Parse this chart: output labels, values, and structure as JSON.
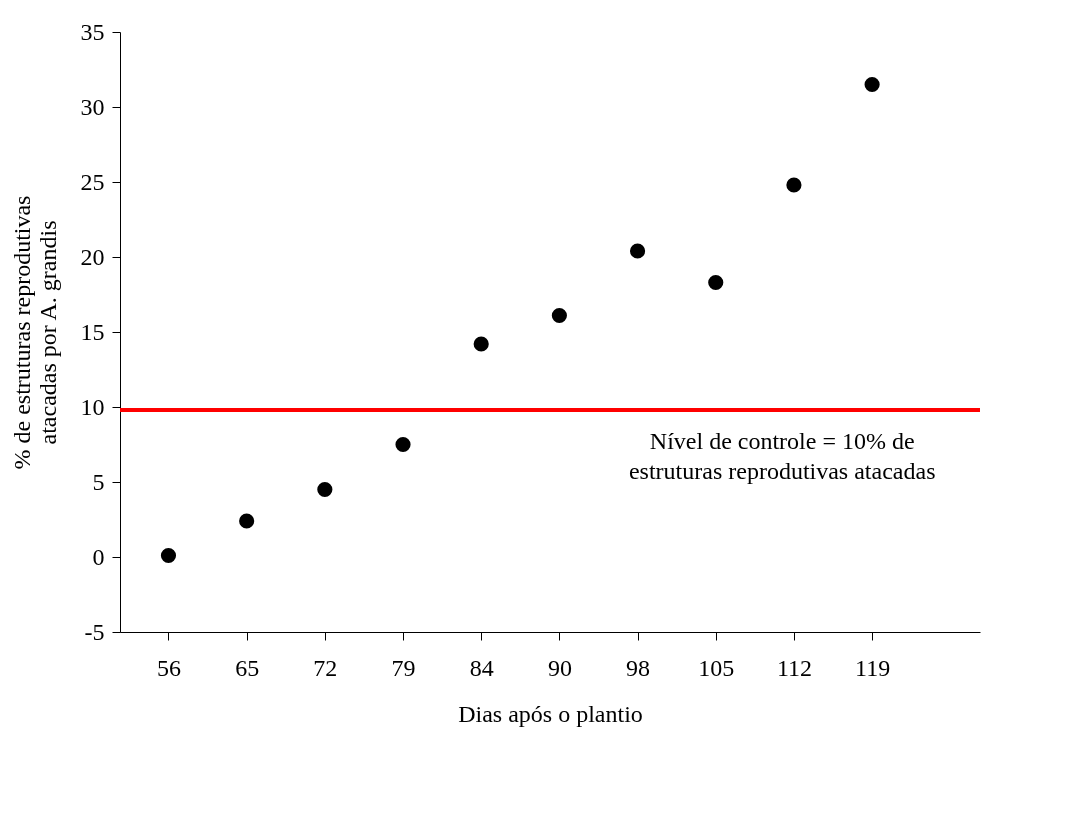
{
  "chart_data": {
    "type": "scatter",
    "xlabel": "Dias após o plantio",
    "ylabel": "% de estruturas reprodutivas\natacadas por A. grandis",
    "categories": [
      "56",
      "65",
      "72",
      "79",
      "84",
      "90",
      "98",
      "105",
      "112",
      "119"
    ],
    "series": [
      {
        "color": "#000000",
        "values": [
          0.1,
          2.4,
          4.5,
          7.5,
          14.2,
          16.1,
          20.4,
          18.3,
          24.8,
          31.5
        ]
      }
    ],
    "ylim": [
      -5,
      35
    ],
    "yticks": [
      -5,
      0,
      5,
      10,
      15,
      20,
      25,
      30,
      35
    ],
    "marker": "circle",
    "grid": false,
    "ref_lines": [
      {
        "axis": "y",
        "value": 9.8,
        "label": "Nível de controle = 10% de\nestruturas reprodutivas atacadas",
        "color": "#ff0000",
        "line_style": "solid"
      }
    ]
  }
}
